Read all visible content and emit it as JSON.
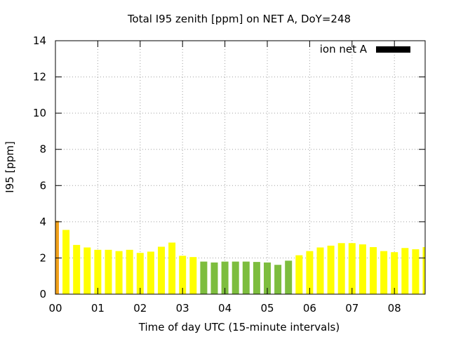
{
  "chart_data": {
    "type": "bar",
    "title": "Total I95 zenith [ppm] on NET A, DoY=248",
    "xlabel": "Time of day UTC (15-minute intervals)",
    "ylabel": "I95 [ppm]",
    "ylim": [
      0,
      14
    ],
    "yticks": [
      0,
      2,
      4,
      6,
      8,
      10,
      12,
      14
    ],
    "xlim_intervals": [
      0,
      35
    ],
    "xticks": [
      {
        "label": "00",
        "interval": 0
      },
      {
        "label": "01",
        "interval": 4
      },
      {
        "label": "02",
        "interval": 8
      },
      {
        "label": "03",
        "interval": 12
      },
      {
        "label": "04",
        "interval": 16
      },
      {
        "label": "05",
        "interval": 20
      },
      {
        "label": "06",
        "interval": 24
      },
      {
        "label": "07",
        "interval": 28
      },
      {
        "label": "08",
        "interval": 32
      }
    ],
    "grid": true,
    "legend": {
      "position": "top-right",
      "entries": [
        {
          "label": "ion net A",
          "color": "#000000"
        }
      ]
    },
    "colors": {
      "orange": "#f2a21b",
      "yellow": "#ffff00",
      "green": "#7dbd3e"
    },
    "series": [
      {
        "values": [
          4.05,
          3.55,
          2.72,
          2.58,
          2.45,
          2.45,
          2.38,
          2.45,
          2.28,
          2.35,
          2.62,
          2.85,
          2.12,
          2.05,
          1.8,
          1.75,
          1.8,
          1.8,
          1.8,
          1.78,
          1.75,
          1.62,
          1.85,
          2.15,
          2.38,
          2.58,
          2.68,
          2.82,
          2.82,
          2.75,
          2.6,
          2.38,
          2.32,
          2.55,
          2.48,
          2.6
        ],
        "colors": [
          "orange",
          "yellow",
          "yellow",
          "yellow",
          "yellow",
          "yellow",
          "yellow",
          "yellow",
          "yellow",
          "yellow",
          "yellow",
          "yellow",
          "yellow",
          "yellow",
          "green",
          "green",
          "green",
          "green",
          "green",
          "green",
          "green",
          "green",
          "green",
          "yellow",
          "yellow",
          "yellow",
          "yellow",
          "yellow",
          "yellow",
          "yellow",
          "yellow",
          "yellow",
          "yellow",
          "yellow",
          "yellow",
          "yellow"
        ]
      }
    ]
  }
}
